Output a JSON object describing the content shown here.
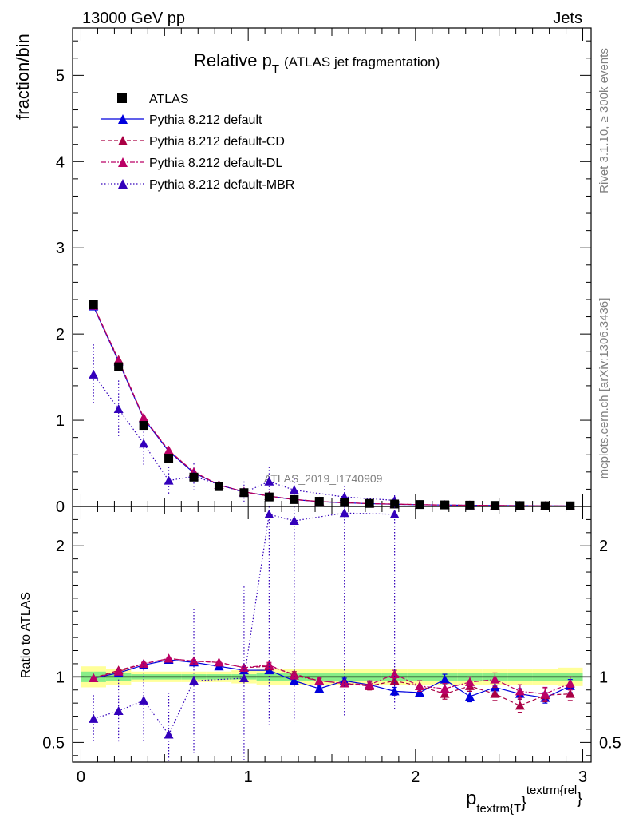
{
  "header": {
    "left": "13000 GeV pp",
    "right": "Jets"
  },
  "side_labels": {
    "rivet": "Rivet 3.1.10, ≥ 300k events",
    "mcplots": "mcplots.cern.ch [arXiv:1306.3436]"
  },
  "watermark": "ATLAS_2019_I1740909",
  "colors": {
    "data": "#000000",
    "default": "#0000dd",
    "cd": "#aa0044",
    "dl": "#bb0066",
    "mbr": "#3300bb",
    "band_inner": "#88ee88",
    "band_outer": "#ffff99"
  },
  "chart_data": [
    {
      "type": "scatter",
      "title_main": "Relative p",
      "title_sub": "T",
      "title_rest": "(ATLAS jet fragmentation)",
      "ylabel": "fraction/bin",
      "xlabel_main": "p",
      "xlabel_sub": "textrm{T",
      "xlabel_brace": "}",
      "xlabel_sup": "textrm{rel",
      "xlabel_close": "}",
      "xlim": [
        -0.05,
        3.05
      ],
      "ylim": [
        0,
        5.55
      ],
      "yticks": [
        0,
        1,
        2,
        3,
        4,
        5
      ],
      "ytick_labels": [
        "0",
        "1",
        "2",
        "3",
        "4",
        "5"
      ],
      "legend": [
        {
          "key": "data",
          "label": "ATLAS"
        },
        {
          "key": "default",
          "label": "Pythia 8.212 default"
        },
        {
          "key": "cd",
          "label": "Pythia 8.212 default-CD"
        },
        {
          "key": "dl",
          "label": "Pythia 8.212 default-DL"
        },
        {
          "key": "mbr",
          "label": "Pythia 8.212 default-MBR"
        }
      ],
      "x": [
        0.075,
        0.225,
        0.375,
        0.525,
        0.675,
        0.825,
        0.975,
        1.125,
        1.275,
        1.425,
        1.575,
        1.725,
        1.875,
        2.025,
        2.175,
        2.325,
        2.475,
        2.625,
        2.775,
        2.925
      ],
      "data": [
        2.34,
        1.62,
        0.94,
        0.56,
        0.34,
        0.23,
        0.16,
        0.11,
        0.08,
        0.06,
        0.045,
        0.035,
        0.028,
        0.022,
        0.018,
        0.015,
        0.012,
        0.01,
        0.008,
        0.007
      ],
      "series": [
        {
          "key": "default",
          "name": "Pythia 8.212 default",
          "values": [
            2.32,
            1.68,
            1.02,
            0.64,
            0.39,
            0.25,
            0.17,
            0.12,
            0.08,
            0.055,
            0.043,
            0.032,
            0.025,
            0.019,
            0.017,
            0.013,
            0.011,
            0.009,
            0.007,
            0.0065
          ]
        },
        {
          "key": "cd",
          "name": "Pythia 8.212 default-CD",
          "values": [
            2.33,
            1.7,
            1.03,
            0.65,
            0.4,
            0.25,
            0.17,
            0.12,
            0.08,
            0.058,
            0.043,
            0.033,
            0.027,
            0.021,
            0.016,
            0.014,
            0.011,
            0.008,
            0.007,
            0.006
          ]
        },
        {
          "key": "dl",
          "name": "Pythia 8.212 default-DL",
          "values": [
            2.33,
            1.69,
            1.03,
            0.65,
            0.4,
            0.25,
            0.17,
            0.12,
            0.08,
            0.058,
            0.043,
            0.033,
            0.027,
            0.021,
            0.016,
            0.014,
            0.012,
            0.008,
            0.007,
            0.006
          ]
        },
        {
          "key": "mbr",
          "name": "Pythia 8.212 default-MBR",
          "values": [
            1.53,
            1.13,
            0.73,
            0.3,
            0.35,
            null,
            0.16,
            0.29,
            0.19,
            null,
            0.11,
            null,
            0.07,
            null,
            null,
            null,
            null,
            null,
            null,
            null
          ],
          "err": [
            0.35,
            0.33,
            0.25,
            0.16,
            0.15,
            null,
            0.13,
            0.17,
            0.13,
            null,
            0.13,
            null,
            0.06,
            null,
            null,
            null,
            null,
            null,
            null,
            null
          ]
        }
      ]
    },
    {
      "type": "line",
      "ylabel": "Ratio to ATLAS",
      "xlim": [
        -0.05,
        3.05
      ],
      "ylim": [
        0.35,
        2.3
      ],
      "yticks": [
        0.5,
        1,
        2
      ],
      "ytick_labels": [
        "0.5",
        "1",
        "2"
      ],
      "xticks": [
        0,
        1,
        2,
        3
      ],
      "xtick_labels": [
        "0",
        "1",
        "2",
        "3"
      ],
      "x": [
        0.075,
        0.225,
        0.375,
        0.525,
        0.675,
        0.825,
        0.975,
        1.125,
        1.275,
        1.425,
        1.575,
        1.725,
        1.875,
        2.025,
        2.175,
        2.325,
        2.475,
        2.625,
        2.775,
        2.925
      ],
      "band_inner": [
        0.04,
        0.03,
        0.02,
        0.02,
        0.02,
        0.02,
        0.02,
        0.03,
        0.03,
        0.03,
        0.03,
        0.03,
        0.03,
        0.03,
        0.03,
        0.03,
        0.03,
        0.03,
        0.03,
        0.03
      ],
      "band_outer": [
        0.08,
        0.06,
        0.04,
        0.04,
        0.04,
        0.04,
        0.05,
        0.06,
        0.06,
        0.06,
        0.06,
        0.06,
        0.06,
        0.06,
        0.06,
        0.06,
        0.06,
        0.06,
        0.06,
        0.07
      ],
      "series": [
        {
          "key": "default",
          "name": "Pythia 8.212 default",
          "values": [
            0.99,
            1.03,
            1.09,
            1.13,
            1.11,
            1.08,
            1.05,
            1.05,
            0.97,
            0.91,
            0.97,
            0.94,
            0.89,
            0.88,
            0.98,
            0.85,
            0.92,
            0.87,
            0.84,
            0.93
          ],
          "err": [
            0.01,
            0.01,
            0.01,
            0.01,
            0.01,
            0.01,
            0.01,
            0.02,
            0.02,
            0.02,
            0.02,
            0.02,
            0.03,
            0.03,
            0.04,
            0.04,
            0.04,
            0.04,
            0.04,
            0.05
          ]
        },
        {
          "key": "cd",
          "name": "Pythia 8.212 default-CD",
          "values": [
            0.99,
            1.05,
            1.1,
            1.14,
            1.12,
            1.11,
            1.07,
            1.08,
            1.02,
            0.97,
            0.95,
            0.93,
            0.97,
            0.93,
            0.87,
            0.93,
            0.87,
            0.78,
            0.86,
            0.87
          ],
          "err": [
            0.01,
            0.01,
            0.01,
            0.01,
            0.01,
            0.01,
            0.01,
            0.02,
            0.02,
            0.02,
            0.02,
            0.03,
            0.03,
            0.04,
            0.04,
            0.04,
            0.05,
            0.05,
            0.05,
            0.05
          ]
        },
        {
          "key": "dl",
          "name": "Pythia 8.212 default-DL",
          "values": [
            0.99,
            1.04,
            1.1,
            1.14,
            1.12,
            1.11,
            1.07,
            1.09,
            1.01,
            0.97,
            0.95,
            0.94,
            1.02,
            0.93,
            0.91,
            0.96,
            0.98,
            0.89,
            0.87,
            0.95
          ],
          "err": [
            0.01,
            0.01,
            0.01,
            0.01,
            0.01,
            0.01,
            0.01,
            0.02,
            0.02,
            0.02,
            0.02,
            0.03,
            0.03,
            0.04,
            0.04,
            0.04,
            0.05,
            0.05,
            0.05,
            0.05
          ]
        },
        {
          "key": "mbr",
          "name": "Pythia 8.212 default-MBR",
          "values": [
            0.68,
            0.74,
            0.82,
            0.56,
            0.97,
            null,
            0.99,
            2.24,
            2.19,
            null,
            2.25,
            null,
            2.24,
            null,
            null,
            null,
            null,
            null,
            null,
            null
          ],
          "err": [
            0.18,
            0.24,
            0.31,
            0.32,
            0.55,
            null,
            0.7,
            1.6,
            1.53,
            null,
            1.55,
            null,
            1.5,
            null,
            null,
            null,
            null,
            null,
            null,
            null
          ]
        }
      ]
    }
  ]
}
